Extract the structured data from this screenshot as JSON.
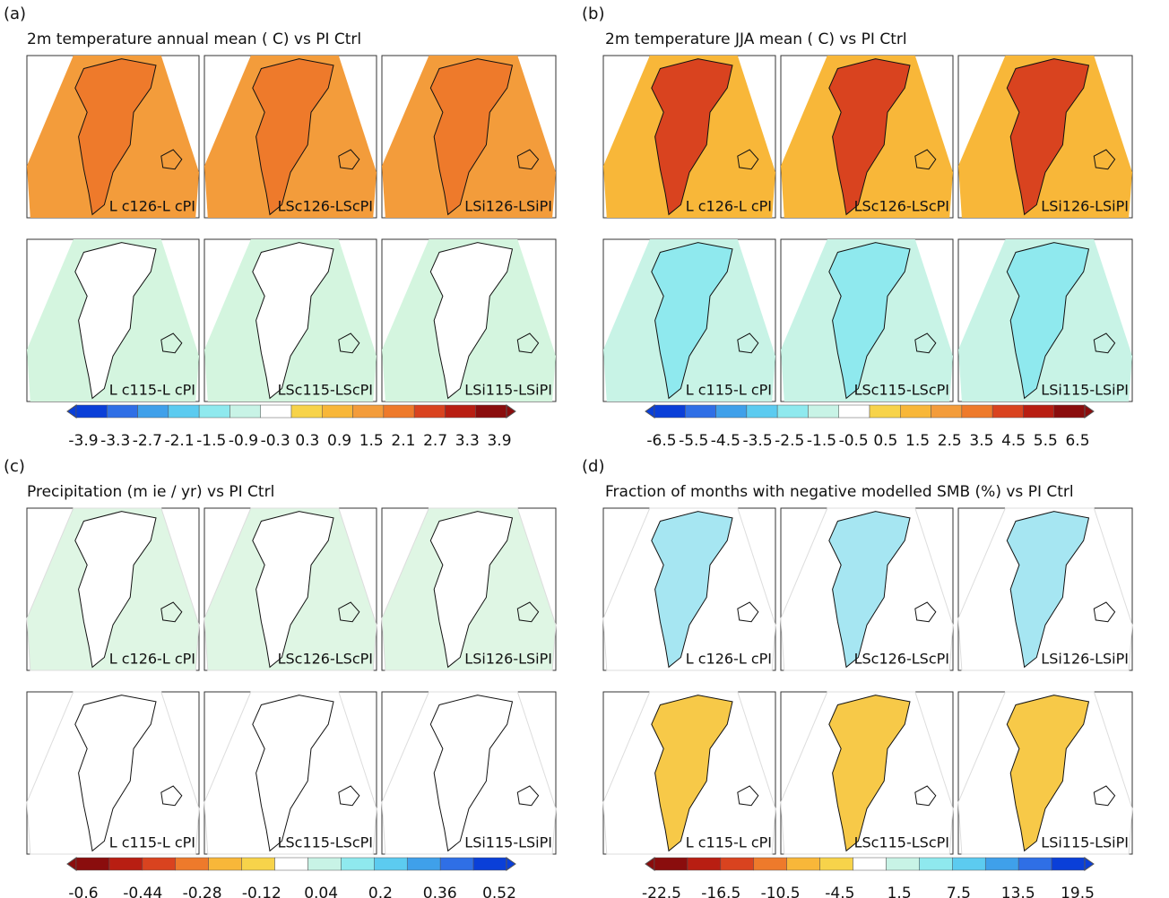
{
  "panels": [
    {
      "label": "(a)",
      "title": "2m temperature annual mean (  C) vs PI Ctrl",
      "maps": [
        [
          "L  c126-L  cPI",
          "LSc126-LScPI",
          "LSi126-LSiPI"
        ],
        [
          "L  c115-L  cPI",
          "LSc115-LScPI",
          "LSi115-LSiPI"
        ]
      ],
      "colorbar": [
        -3.9,
        -3.3,
        -2.7,
        -2.1,
        -1.5,
        -0.9,
        -0.3,
        0.3,
        0.9,
        1.5,
        2.1,
        2.7,
        3.3,
        3.9
      ]
    },
    {
      "label": "(b)",
      "title": "2m temperature JJA mean (  C) vs PI Ctrl",
      "maps": [
        [
          "L  c126-L  cPI",
          "LSc126-LScPI",
          "LSi126-LSiPI"
        ],
        [
          "L  c115-L  cPI",
          "LSc115-LScPI",
          "LSi115-LSiPI"
        ]
      ],
      "colorbar": [
        -6.5,
        -5.5,
        -4.5,
        -3.5,
        -2.5,
        -1.5,
        -0.5,
        0.5,
        1.5,
        2.5,
        3.5,
        4.5,
        5.5,
        6.5
      ]
    },
    {
      "label": "(c)",
      "title": "Precipitation (m ie / yr) vs PI Ctrl",
      "maps": [
        [
          "L  c126-L  cPI",
          "LSc126-LScPI",
          "LSi126-LSiPI"
        ],
        [
          "L  c115-L  cPI",
          "LSc115-LScPI",
          "LSi115-LSiPI"
        ]
      ],
      "colorbar": [
        -0.6,
        -0.44,
        -0.28,
        -0.12,
        0.04,
        0.2,
        0.36,
        0.52
      ]
    },
    {
      "label": "(d)",
      "title": "Fraction of months with negative modelled SMB (%) vs PI Ctrl",
      "maps": [
        [
          "L  c126-L  cPI",
          "LSc126-LScPI",
          "LSi126-LSiPI"
        ],
        [
          "L  c115-L  cPI",
          "LSc115-LScPI",
          "LSi115-LSiPI"
        ]
      ],
      "colorbar": [
        -22.5,
        -16.5,
        -10.5,
        -4.5,
        1.5,
        7.5,
        13.5,
        19.5
      ]
    }
  ]
}
